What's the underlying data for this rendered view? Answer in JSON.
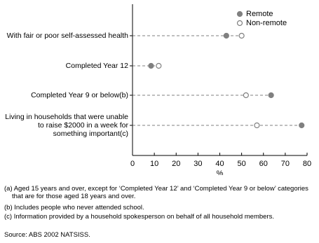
{
  "chart_data": {
    "type": "dot",
    "categories": [
      "With fair or poor self-assessed health",
      "Completed Year 12",
      "Completed Year 9 or below(b)",
      "Living in households that were unable to raise $2000 in a week for something important(c)"
    ],
    "series": [
      {
        "name": "Remote",
        "color": "#808080",
        "marker": "filled",
        "values": [
          43,
          8.5,
          63.5,
          77.5
        ]
      },
      {
        "name": "Non-remote",
        "color": "#808080",
        "marker": "open",
        "values": [
          50,
          12,
          52,
          57
        ]
      }
    ],
    "xlim": [
      0,
      80
    ],
    "xticks": [
      0,
      10,
      20,
      30,
      40,
      50,
      60,
      70,
      80
    ],
    "xlabel": "%",
    "legend": "top-right",
    "notes": [
      "(a) Aged 15 years and over, except for ‘Completed Year 12’ and ‘Completed Year 9 or below’ categories that are for those aged 18 years and over.",
      "(b) Includes people who never attended school.",
      "(c) Information provided by a household spokesperson on behalf of all household members."
    ],
    "source": "Source: ABS 2002 NATSISS."
  }
}
